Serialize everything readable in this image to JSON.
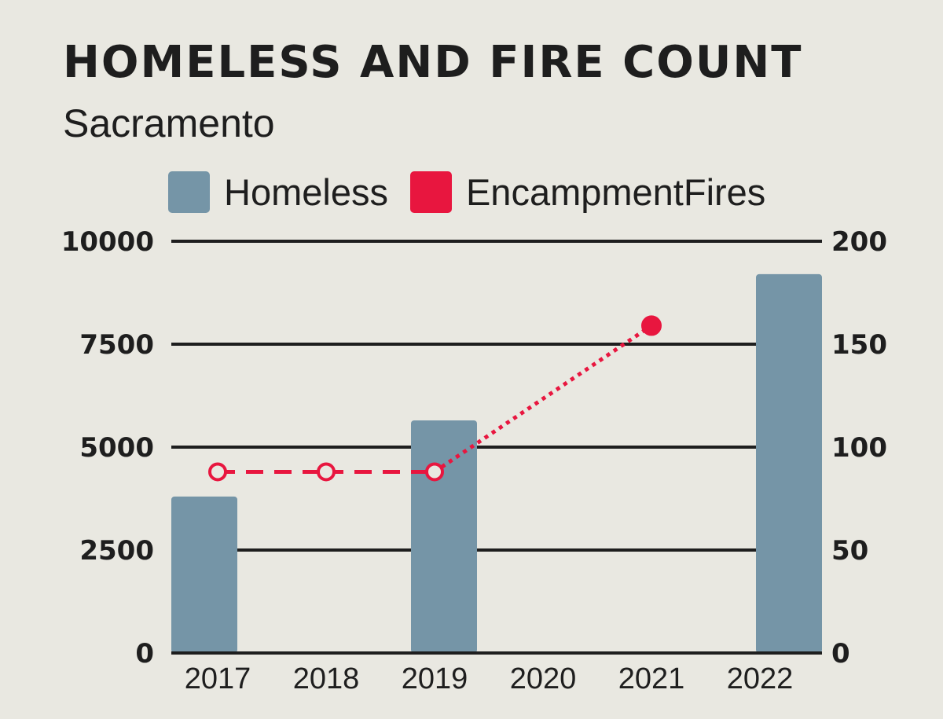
{
  "chart_data": {
    "type": "bar",
    "title": "HOMELESS AND FIRE COUNT",
    "subtitle": "Sacramento",
    "categories": [
      "2017",
      "2018",
      "2019",
      "2020",
      "2021",
      "2022"
    ],
    "series": [
      {
        "name": "Homeless",
        "type": "bar",
        "axis": "left",
        "color": "#7595a7",
        "values": [
          3800,
          null,
          5650,
          null,
          null,
          9200
        ]
      },
      {
        "name": "EncampmentFires",
        "type": "line",
        "axis": "right",
        "color": "#e8163f",
        "values": [
          88,
          88,
          88,
          null,
          159,
          null
        ],
        "point_style": [
          "open",
          "open",
          "open",
          null,
          "filled",
          null
        ],
        "segment_style": [
          "dashed",
          "dashed",
          "dotted",
          "dotted",
          null
        ]
      }
    ],
    "y_left": {
      "ticks": [
        "0",
        "2500",
        "5000",
        "7500",
        "10000"
      ],
      "lim": [
        0,
        10000
      ]
    },
    "y_right": {
      "ticks": [
        "0",
        "50",
        "100",
        "150",
        "200"
      ],
      "lim": [
        0,
        200
      ]
    },
    "grid": true,
    "legend_position": "top"
  }
}
